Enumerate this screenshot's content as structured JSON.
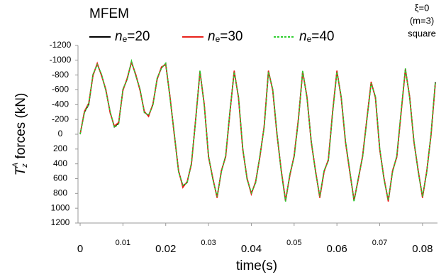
{
  "chart_data": {
    "type": "line",
    "title": "MFEM",
    "annotations": [
      "ξ=0",
      "(m=3)",
      "square"
    ],
    "xlabel": "time(s)",
    "ylabel": "TzA forces (kN)",
    "xlim": [
      -0.0005,
      0.0835
    ],
    "xticks": [
      0,
      0.01,
      0.02,
      0.03,
      0.04,
      0.05,
      0.06,
      0.07,
      0.08
    ],
    "ylim": [
      -1200,
      1200
    ],
    "yticks": [
      -1200,
      -1000,
      -800,
      -600,
      -400,
      -200,
      0,
      200,
      400,
      600,
      800,
      1000,
      1200
    ],
    "y_inverted": true,
    "grid": false,
    "x": [
      0,
      0.001,
      0.002,
      0.003,
      0.004,
      0.005,
      0.006,
      0.007,
      0.008,
      0.009,
      0.01,
      0.011,
      0.012,
      0.013,
      0.014,
      0.015,
      0.016,
      0.017,
      0.018,
      0.019,
      0.02,
      0.021,
      0.022,
      0.023,
      0.024,
      0.025,
      0.026,
      0.027,
      0.028,
      0.029,
      0.03,
      0.031,
      0.032,
      0.033,
      0.034,
      0.035,
      0.036,
      0.037,
      0.038,
      0.039,
      0.04,
      0.041,
      0.042,
      0.043,
      0.044,
      0.045,
      0.046,
      0.047,
      0.048,
      0.049,
      0.05,
      0.051,
      0.052,
      0.053,
      0.054,
      0.055,
      0.056,
      0.057,
      0.058,
      0.059,
      0.06,
      0.061,
      0.062,
      0.063,
      0.064,
      0.065,
      0.066,
      0.067,
      0.068,
      0.069,
      0.07,
      0.071,
      0.072,
      0.073,
      0.074,
      0.075,
      0.076,
      0.077,
      0.078,
      0.079,
      0.08,
      0.081,
      0.082,
      0.083
    ],
    "series": [
      {
        "name": "ne=20",
        "color": "#000000",
        "style": "solid",
        "values": [
          0,
          -300,
          -400,
          -800,
          -950,
          -800,
          -600,
          -300,
          -100,
          -150,
          -600,
          -750,
          -980,
          -800,
          -600,
          -300,
          -250,
          -400,
          -750,
          -900,
          -950,
          -500,
          0,
          500,
          700,
          650,
          400,
          -200,
          -850,
          -400,
          300,
          600,
          850,
          500,
          300,
          -300,
          -850,
          -500,
          200,
          600,
          800,
          650,
          300,
          -100,
          -850,
          -600,
          0,
          500,
          900,
          550,
          300,
          -200,
          -850,
          -500,
          100,
          500,
          850,
          500,
          350,
          -300,
          -850,
          -500,
          100,
          500,
          900,
          600,
          300,
          -200,
          -700,
          -500,
          200,
          600,
          900,
          500,
          300,
          -300,
          -880,
          -500,
          100,
          500,
          850,
          500,
          0,
          -700
        ]
      },
      {
        "name": "ne=30",
        "color": "#e8221b",
        "style": "solid",
        "values": [
          0,
          -310,
          -420,
          -790,
          -960,
          -790,
          -610,
          -290,
          -110,
          -160,
          -590,
          -760,
          -970,
          -810,
          -590,
          -310,
          -240,
          -410,
          -740,
          -910,
          -940,
          -510,
          10,
          490,
          720,
          640,
          410,
          -210,
          -840,
          -410,
          310,
          590,
          860,
          490,
          310,
          -290,
          -860,
          -490,
          210,
          590,
          810,
          640,
          310,
          -110,
          -860,
          -590,
          10,
          490,
          890,
          560,
          290,
          -210,
          -840,
          -510,
          110,
          490,
          860,
          510,
          340,
          -310,
          -860,
          -490,
          110,
          510,
          890,
          610,
          290,
          -210,
          -710,
          -490,
          210,
          590,
          910,
          490,
          310,
          -290,
          -870,
          -510,
          110,
          490,
          860,
          490,
          10,
          -690
        ]
      },
      {
        "name": "ne=40",
        "color": "#2fcf2f",
        "style": "dashed",
        "values": [
          0,
          -290,
          -410,
          -810,
          -940,
          -810,
          -590,
          -310,
          -90,
          -140,
          -610,
          -740,
          -990,
          -790,
          -610,
          -290,
          -260,
          -390,
          -760,
          -890,
          -960,
          -490,
          -10,
          510,
          690,
          660,
          390,
          -190,
          -860,
          -390,
          290,
          610,
          840,
          510,
          290,
          -310,
          -840,
          -510,
          190,
          610,
          790,
          660,
          290,
          -90,
          -840,
          -610,
          -10,
          510,
          910,
          540,
          310,
          -190,
          -860,
          -490,
          90,
          510,
          840,
          490,
          360,
          -290,
          -840,
          -510,
          90,
          490,
          910,
          590,
          310,
          -190,
          -690,
          -510,
          190,
          610,
          890,
          510,
          290,
          -310,
          -890,
          -490,
          90,
          510,
          840,
          510,
          -10,
          -710
        ]
      }
    ]
  }
}
